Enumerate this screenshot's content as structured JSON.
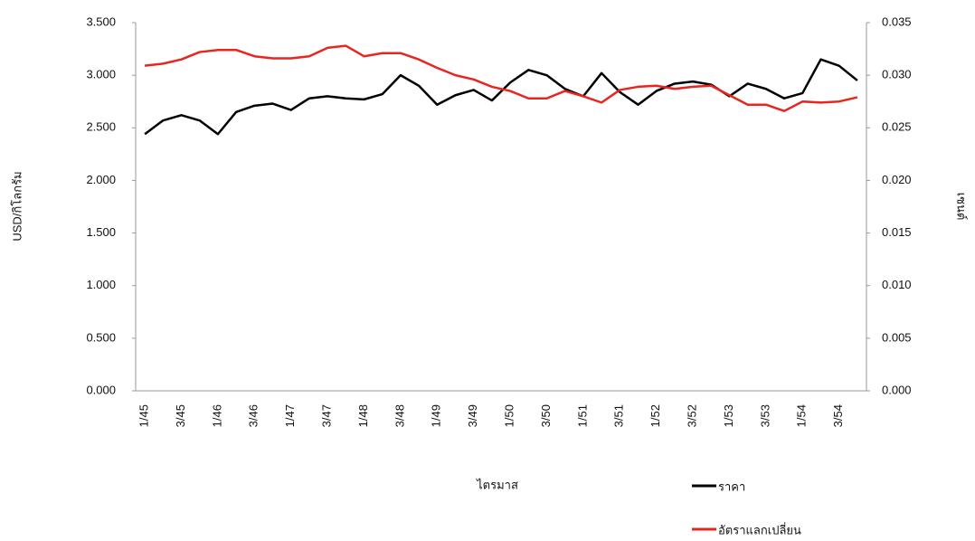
{
  "chart_data": {
    "type": "line",
    "x_label": "ไตรมาส",
    "y_label": "USD/กิโลกรัม",
    "y2_label": "เซนต์",
    "categories": [
      "1/45",
      null,
      "3/45",
      null,
      "1/46",
      null,
      "3/46",
      null,
      "1/47",
      null,
      "3/47",
      null,
      "1/48",
      null,
      "3/48",
      null,
      "1/49",
      null,
      "3/49",
      null,
      "1/50",
      null,
      "3/50",
      null,
      "1/51",
      null,
      "3/51",
      null,
      "1/52",
      null,
      "3/52",
      null,
      "1/53",
      null,
      "3/53",
      null,
      "1/54",
      null,
      "3/54",
      null
    ],
    "series": [
      {
        "name": "ราคา",
        "color": "#000000",
        "values": [
          2.44,
          2.57,
          2.62,
          2.57,
          2.44,
          2.65,
          2.71,
          2.73,
          2.67,
          2.78,
          2.8,
          2.78,
          2.77,
          2.82,
          3.0,
          2.9,
          2.72,
          2.81,
          2.86,
          2.76,
          2.93,
          3.05,
          3.0,
          2.87,
          2.8,
          3.02,
          2.84,
          2.72,
          2.85,
          2.92,
          2.94,
          2.91,
          2.8,
          2.92,
          2.87,
          2.78,
          2.83,
          3.15,
          3.09,
          2.95
        ]
      },
      {
        "name": "อัตราแลกเปลี่ยน",
        "color": "#e8251f",
        "axis": "y2",
        "values": [
          0.0309,
          0.0311,
          0.0315,
          0.0322,
          0.0324,
          0.0324,
          0.0318,
          0.0316,
          0.0316,
          0.0318,
          0.0326,
          0.0328,
          0.0318,
          0.0321,
          0.0321,
          0.0315,
          0.0307,
          0.03,
          0.0296,
          0.0289,
          0.0285,
          0.0278,
          0.0278,
          0.0285,
          0.028,
          0.0274,
          0.0286,
          0.0289,
          0.029,
          0.0287,
          0.0289,
          0.029,
          0.0281,
          0.0272,
          0.0272,
          0.0266,
          0.0275,
          0.0274,
          0.0275,
          0.0279
        ]
      }
    ],
    "ylim": [
      0,
      3.5
    ],
    "yticks": [
      {
        "value": 0,
        "label": "0.000"
      },
      {
        "value": 0.5,
        "label": "0.500"
      },
      {
        "value": 1,
        "label": "1.000"
      },
      {
        "value": 1.5,
        "label": "1.500"
      },
      {
        "value": 2,
        "label": "2.000"
      },
      {
        "value": 2.5,
        "label": "2.500"
      },
      {
        "value": 3,
        "label": "3.000"
      },
      {
        "value": 3.5,
        "label": "3.500"
      }
    ],
    "y2lim": [
      0,
      0.035
    ],
    "y2ticks": [
      {
        "value": 0,
        "label": "0.000"
      },
      0.005,
      {
        "value": 0.01,
        "label": "0.010"
      },
      0.015,
      {
        "value": 0.02,
        "label": "0.020"
      },
      0.025,
      {
        "value": 0.03,
        "label": "0.030"
      },
      0.035
    ],
    "legend": "bottom-right",
    "grid": false
  }
}
